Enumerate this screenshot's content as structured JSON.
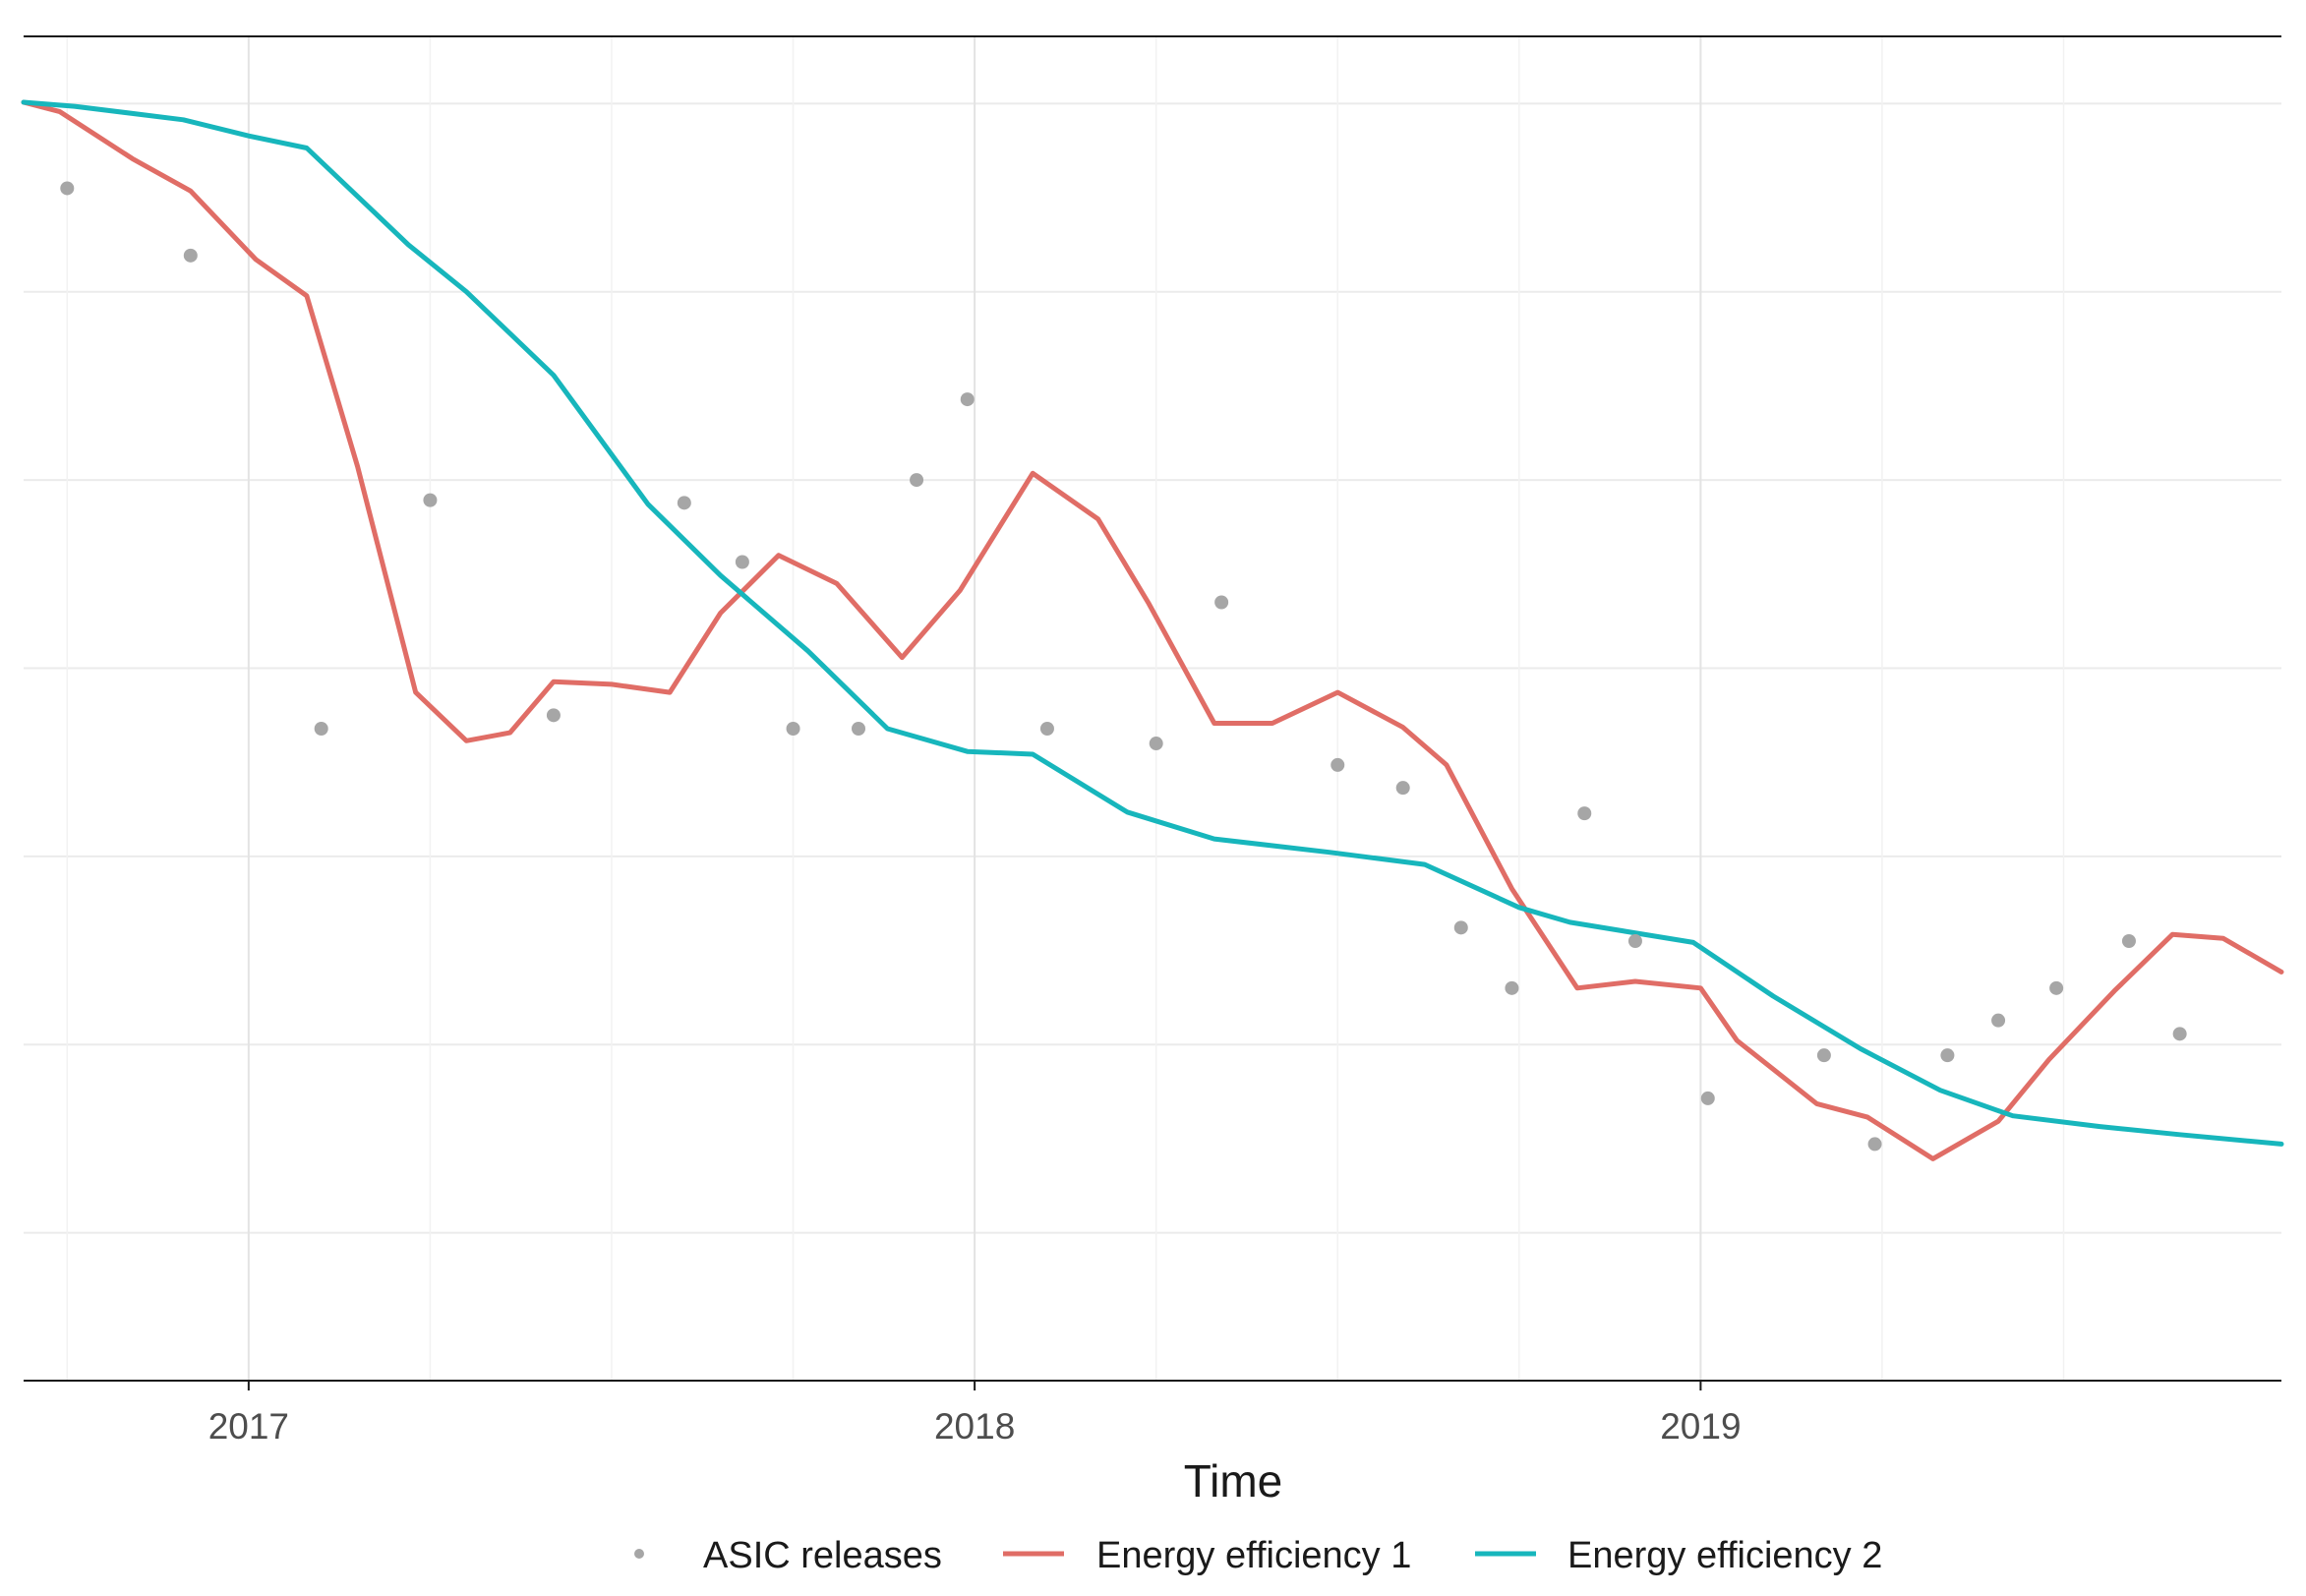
{
  "chart_data": {
    "type": "line",
    "title": "",
    "xlabel": "Time",
    "ylabel": "",
    "x_ticks": [
      {
        "label": "2017",
        "value": 2017.0
      },
      {
        "label": "2018",
        "value": 2018.0
      },
      {
        "label": "2019",
        "value": 2019.0
      }
    ],
    "xlim": [
      2016.69,
      2019.8
    ],
    "ylim": [
      0,
      100
    ],
    "grid": true,
    "legend": {
      "position": "bottom",
      "entries": [
        {
          "label": "ASIC releases",
          "kind": "point",
          "color": "#a6a6a6"
        },
        {
          "label": "Energy efficiency 1",
          "kind": "line",
          "color": "#e06d66"
        },
        {
          "label": "Energy efficiency 2",
          "kind": "line",
          "color": "#17b6bc"
        }
      ]
    },
    "series": [
      {
        "name": "Energy efficiency 1",
        "type": "line",
        "color": "#e06d66",
        "points": [
          [
            2016.69,
            95.1
          ],
          [
            2016.74,
            94.4
          ],
          [
            2016.84,
            90.9
          ],
          [
            2016.92,
            88.5
          ],
          [
            2017.01,
            83.4
          ],
          [
            2017.08,
            80.7
          ],
          [
            2017.15,
            68.0
          ],
          [
            2017.23,
            51.2
          ],
          [
            2017.3,
            47.6
          ],
          [
            2017.36,
            48.2
          ],
          [
            2017.42,
            52.0
          ],
          [
            2017.5,
            51.8
          ],
          [
            2017.58,
            51.2
          ],
          [
            2017.65,
            57.1
          ],
          [
            2017.73,
            61.4
          ],
          [
            2017.81,
            59.3
          ],
          [
            2017.9,
            53.8
          ],
          [
            2017.98,
            58.8
          ],
          [
            2018.08,
            67.5
          ],
          [
            2018.17,
            64.1
          ],
          [
            2018.24,
            57.8
          ],
          [
            2018.33,
            48.9
          ],
          [
            2018.41,
            48.9
          ],
          [
            2018.5,
            51.2
          ],
          [
            2018.59,
            48.6
          ],
          [
            2018.65,
            45.8
          ],
          [
            2018.74,
            36.6
          ],
          [
            2018.83,
            29.2
          ],
          [
            2018.91,
            29.7
          ],
          [
            2019.0,
            29.2
          ],
          [
            2019.05,
            25.3
          ],
          [
            2019.16,
            20.6
          ],
          [
            2019.23,
            19.6
          ],
          [
            2019.32,
            16.5
          ],
          [
            2019.41,
            19.3
          ],
          [
            2019.48,
            23.9
          ],
          [
            2019.57,
            29.0
          ],
          [
            2019.65,
            33.2
          ],
          [
            2019.72,
            32.9
          ],
          [
            2019.8,
            30.4
          ]
        ]
      },
      {
        "name": "Energy efficiency 2",
        "type": "line",
        "color": "#17b6bc",
        "points": [
          [
            2016.69,
            95.1
          ],
          [
            2016.76,
            94.8
          ],
          [
            2016.91,
            93.8
          ],
          [
            2017.0,
            92.6
          ],
          [
            2017.08,
            91.7
          ],
          [
            2017.22,
            84.5
          ],
          [
            2017.3,
            81.0
          ],
          [
            2017.42,
            74.8
          ],
          [
            2017.55,
            65.2
          ],
          [
            2017.65,
            59.9
          ],
          [
            2017.77,
            54.3
          ],
          [
            2017.88,
            48.5
          ],
          [
            2017.99,
            46.8
          ],
          [
            2018.08,
            46.6
          ],
          [
            2018.21,
            42.3
          ],
          [
            2018.33,
            40.3
          ],
          [
            2018.49,
            39.3
          ],
          [
            2018.62,
            38.4
          ],
          [
            2018.75,
            35.2
          ],
          [
            2018.82,
            34.1
          ],
          [
            2018.99,
            32.6
          ],
          [
            2019.1,
            28.6
          ],
          [
            2019.22,
            24.7
          ],
          [
            2019.33,
            21.6
          ],
          [
            2019.43,
            19.7
          ],
          [
            2019.55,
            18.9
          ],
          [
            2019.66,
            18.3
          ],
          [
            2019.8,
            17.6
          ]
        ]
      },
      {
        "name": "ASIC releases",
        "type": "scatter",
        "color": "#a6a6a6",
        "points": [
          [
            2016.75,
            88.7
          ],
          [
            2016.92,
            83.7
          ],
          [
            2017.1,
            48.5
          ],
          [
            2017.25,
            65.5
          ],
          [
            2017.42,
            49.5
          ],
          [
            2017.6,
            65.3
          ],
          [
            2017.68,
            60.9
          ],
          [
            2017.75,
            48.5
          ],
          [
            2017.84,
            48.5
          ],
          [
            2017.92,
            67.0
          ],
          [
            2017.99,
            73.0
          ],
          [
            2018.1,
            48.5
          ],
          [
            2018.25,
            47.4
          ],
          [
            2018.34,
            57.9
          ],
          [
            2018.5,
            45.8
          ],
          [
            2018.59,
            44.1
          ],
          [
            2018.67,
            33.7
          ],
          [
            2018.74,
            29.2
          ],
          [
            2018.84,
            42.2
          ],
          [
            2018.91,
            32.7
          ],
          [
            2019.01,
            21.0
          ],
          [
            2019.17,
            24.2
          ],
          [
            2019.24,
            17.6
          ],
          [
            2019.34,
            24.2
          ],
          [
            2019.41,
            26.8
          ],
          [
            2019.49,
            29.2
          ],
          [
            2019.59,
            32.7
          ],
          [
            2019.66,
            25.8
          ]
        ]
      }
    ]
  }
}
